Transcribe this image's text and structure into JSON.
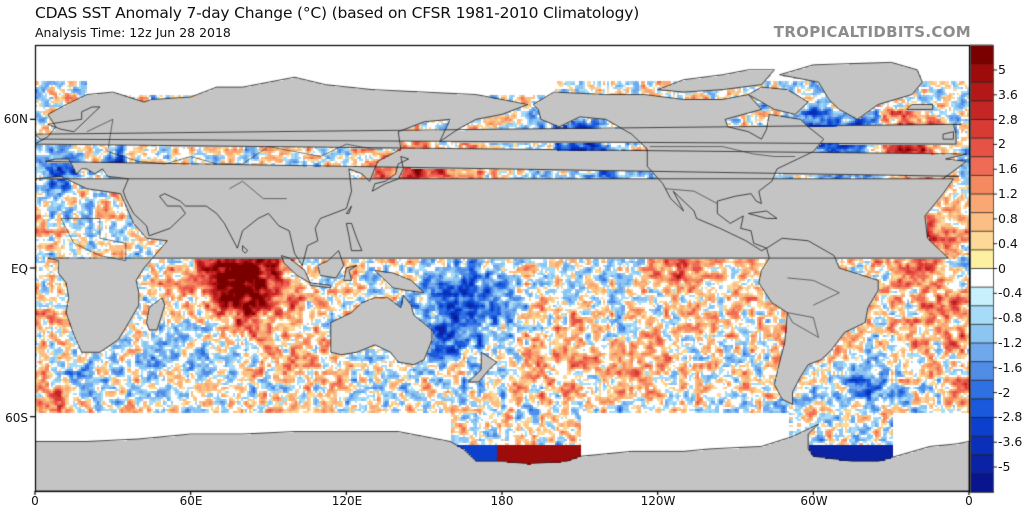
{
  "header": {
    "title": "CDAS SST Anomaly 7-day Change (°C) (based on CFSR 1981-2010 Climatology)",
    "analysis_time": "Analysis Time: 12z Jun 28 2018",
    "brand": "TROPICALTIDBITS.COM"
  },
  "map": {
    "projection": "equirectangular",
    "land_color": "#c4c4c4",
    "ice_color": "#ffffff",
    "lat_labels": [
      "60N",
      "EQ",
      "60S"
    ],
    "lon_labels": [
      "0",
      "60E",
      "120E",
      "180",
      "120W",
      "60W",
      "0"
    ],
    "features": [
      {
        "name": "Indian Ocean warm anomaly",
        "sign": "positive"
      },
      {
        "name": "North Atlantic cold anomaly",
        "sign": "negative"
      },
      {
        "name": "Northeast Pacific cold anomaly",
        "sign": "negative"
      },
      {
        "name": "East Asia warm anomaly",
        "sign": "positive"
      },
      {
        "name": "Ross Sea strong mixed anomaly",
        "sign": "mixed"
      },
      {
        "name": "Weddell Sea strong cold anomaly",
        "sign": "negative"
      }
    ]
  },
  "colorbar": {
    "units": "°C",
    "labels": [
      "5",
      "3.6",
      "2.8",
      "2",
      "1.6",
      "1.2",
      "0.8",
      "0.4",
      "0",
      "-0.4",
      "-0.8",
      "-1.2",
      "-1.6",
      "-2",
      "-2.8",
      "-3.6",
      "-5"
    ],
    "colors": [
      "#7a0000",
      "#9e0b0b",
      "#b31818",
      "#c42626",
      "#d83a34",
      "#e65246",
      "#f06b55",
      "#f5895f",
      "#f9a873",
      "#fbbf85",
      "#fdd896",
      "#fdf0a0",
      "#ffffff",
      "#c8f0fc",
      "#a6dcf8",
      "#8cc4f2",
      "#6fa8ec",
      "#4f8de6",
      "#2f70e2",
      "#1a58dc",
      "#0c40cc",
      "#0a2fb8",
      "#0a22a4",
      "#08158e"
    ]
  }
}
